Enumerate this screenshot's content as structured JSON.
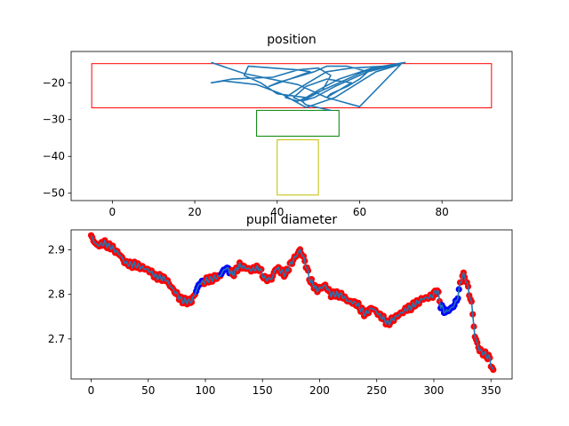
{
  "chart_data": [
    {
      "type": "line",
      "title": "position",
      "xlim": [
        -10,
        97
      ],
      "ylim": [
        -52,
        -11.5
      ],
      "xticks": [
        0,
        20,
        40,
        60,
        80
      ],
      "yticks": [
        -20,
        -30,
        -40,
        -50
      ],
      "grid": false,
      "regions": [
        {
          "color": "#ff0000",
          "x": [
            -5,
            92
          ],
          "y": [
            -26.8,
            -14.8
          ]
        },
        {
          "color": "#008000",
          "x": [
            35,
            55
          ],
          "y": [
            -34.5,
            -27.5
          ]
        },
        {
          "color": "#bfbf00",
          "x": [
            40,
            50
          ],
          "y": [
            -50.5,
            -35.5
          ]
        }
      ],
      "series": [
        {
          "color": "#1f77b4",
          "x": [
            24,
            32,
            45,
            52,
            60,
            70,
            64,
            54,
            47,
            41,
            35,
            27,
            24,
            29,
            39,
            45,
            50,
            53,
            51,
            45,
            42,
            46,
            52,
            58,
            66,
            71,
            63,
            55,
            50,
            47,
            40,
            36,
            32,
            33,
            39,
            45,
            48,
            43,
            38,
            40,
            46,
            49,
            52,
            57,
            62,
            60,
            57,
            53,
            52,
            55,
            58,
            52,
            47,
            44,
            46,
            51,
            55,
            61,
            68,
            70,
            62,
            54,
            49,
            46,
            47,
            51,
            53
          ],
          "y": [
            -14.5,
            -17.5,
            -20.5,
            -24,
            -26.5,
            -15,
            -17,
            -24,
            -26.7,
            -23,
            -20.5,
            -19.5,
            -20,
            -19,
            -18.5,
            -16.5,
            -16,
            -18,
            -22,
            -25,
            -24,
            -21,
            -17,
            -16,
            -15.5,
            -14.5,
            -16,
            -19,
            -22,
            -24,
            -23,
            -20,
            -18,
            -15.5,
            -16,
            -16.5,
            -17,
            -19,
            -21,
            -20,
            -18,
            -17,
            -15.5,
            -15.5,
            -17,
            -19,
            -21,
            -23,
            -24,
            -22,
            -20,
            -19,
            -21,
            -24,
            -25,
            -22,
            -20,
            -17,
            -15,
            -14.8,
            -17,
            -21,
            -24,
            -25,
            -26,
            -27,
            -27.5
          ]
        }
      ]
    },
    {
      "type": "line",
      "title": "pupil diameter",
      "xlim": [
        -17.5,
        368.5
      ],
      "ylim": [
        2.61,
        2.945
      ],
      "xticks": [
        0,
        50,
        100,
        150,
        200,
        250,
        300,
        350
      ],
      "yticks": [
        2.7,
        2.8,
        2.9
      ],
      "yticklabels": [
        "2.7",
        "2.8",
        "2.9"
      ],
      "grid": false,
      "line_color": "#1f77b4",
      "marker_colors": {
        "default": "#ff0000",
        "alt": "#0000ff"
      },
      "blue_ranges": [
        [
          92,
          98
        ],
        [
          114,
          122
        ],
        [
          306,
          322
        ]
      ],
      "anchors": [
        [
          0,
          2.93
        ],
        [
          5,
          2.91
        ],
        [
          12,
          2.915
        ],
        [
          18,
          2.905
        ],
        [
          25,
          2.89
        ],
        [
          30,
          2.87
        ],
        [
          40,
          2.865
        ],
        [
          50,
          2.855
        ],
        [
          57,
          2.84
        ],
        [
          65,
          2.835
        ],
        [
          72,
          2.81
        ],
        [
          80,
          2.785
        ],
        [
          88,
          2.785
        ],
        [
          95,
          2.825
        ],
        [
          105,
          2.835
        ],
        [
          112,
          2.84
        ],
        [
          118,
          2.86
        ],
        [
          124,
          2.845
        ],
        [
          130,
          2.865
        ],
        [
          140,
          2.855
        ],
        [
          147,
          2.86
        ],
        [
          152,
          2.835
        ],
        [
          158,
          2.835
        ],
        [
          162,
          2.86
        ],
        [
          170,
          2.845
        ],
        [
          175,
          2.87
        ],
        [
          183,
          2.9
        ],
        [
          187,
          2.875
        ],
        [
          192,
          2.83
        ],
        [
          198,
          2.81
        ],
        [
          205,
          2.82
        ],
        [
          210,
          2.8
        ],
        [
          218,
          2.8
        ],
        [
          225,
          2.785
        ],
        [
          232,
          2.78
        ],
        [
          240,
          2.755
        ],
        [
          246,
          2.77
        ],
        [
          252,
          2.755
        ],
        [
          260,
          2.735
        ],
        [
          267,
          2.75
        ],
        [
          275,
          2.765
        ],
        [
          282,
          2.775
        ],
        [
          290,
          2.79
        ],
        [
          298,
          2.795
        ],
        [
          303,
          2.81
        ],
        [
          306,
          2.775
        ],
        [
          310,
          2.76
        ],
        [
          316,
          2.77
        ],
        [
          320,
          2.785
        ],
        [
          325,
          2.845
        ],
        [
          328,
          2.835
        ],
        [
          333,
          2.78
        ],
        [
          336,
          2.705
        ],
        [
          340,
          2.675
        ],
        [
          345,
          2.665
        ],
        [
          349,
          2.655
        ],
        [
          352,
          2.625
        ]
      ]
    }
  ]
}
